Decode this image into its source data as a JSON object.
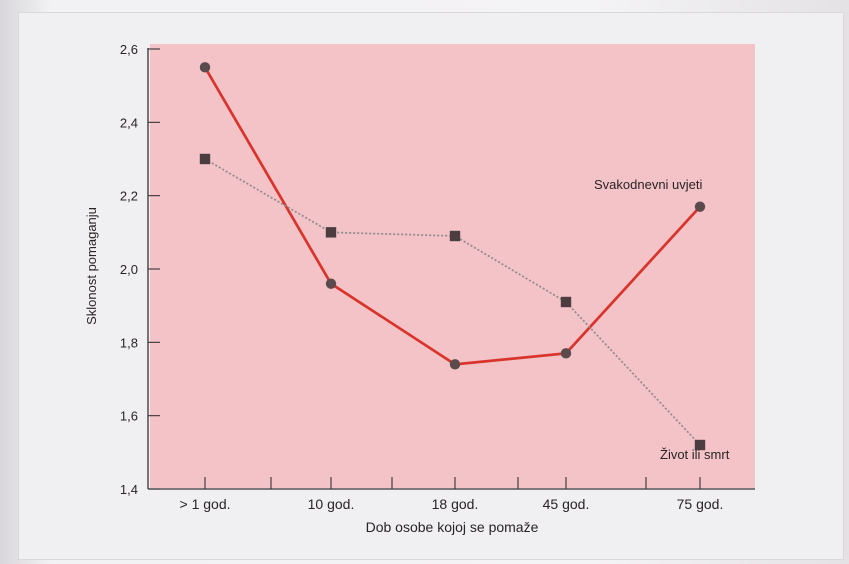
{
  "chart_data": {
    "type": "line",
    "title": "",
    "xlabel": "Dob osobe kojoj se pomaže",
    "ylabel": "Sklonost pomaganju",
    "categories": [
      "> 1 god.",
      "10 god.",
      "18 god.",
      "45 god.",
      "75 god."
    ],
    "y_ticks": [
      "1,4",
      "1,6",
      "1,8",
      "2,0",
      "2,2",
      "2,4",
      "2,6"
    ],
    "ylim": [
      1.4,
      2.6
    ],
    "grid": false,
    "series": [
      {
        "name": "Svakodnevni uvjeti",
        "values": [
          2.55,
          1.96,
          1.74,
          1.77,
          2.17
        ],
        "color": "#d9342b",
        "marker": "circle"
      },
      {
        "name": "Život ili smrt",
        "values": [
          2.3,
          2.1,
          2.09,
          1.91,
          1.52
        ],
        "color": "#8f8a8c",
        "marker": "square"
      }
    ],
    "colors": {
      "plot_background": "#f3c3c8",
      "frame": "#3a3236"
    }
  }
}
